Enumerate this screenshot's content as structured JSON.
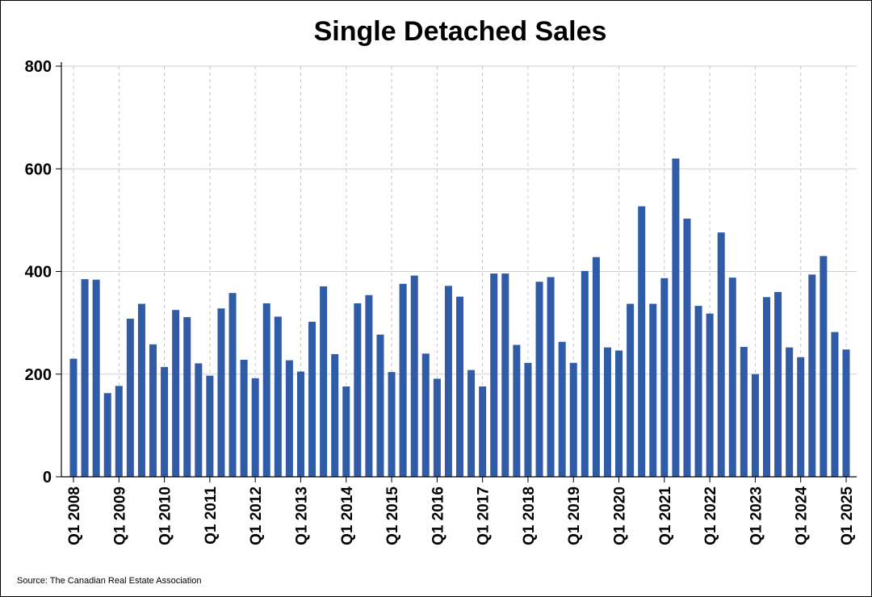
{
  "chart_data": {
    "type": "bar",
    "title": "Single Detached Sales",
    "source": "Source: The Canadian Real Estate Association",
    "ylim": [
      0,
      800
    ],
    "yticks": [
      0,
      200,
      400,
      600,
      800
    ],
    "xtick_labels": [
      "Q1 2008",
      "Q1 2009",
      "Q1 2010",
      "Q1 2011",
      "Q1 2012",
      "Q1 2013",
      "Q1 2014",
      "Q1 2015",
      "Q1 2016",
      "Q1 2017",
      "Q1 2018",
      "Q1 2019",
      "Q1 2020",
      "Q1 2021",
      "Q1 2022",
      "Q1 2023",
      "Q1 2024",
      "Q1 2025"
    ],
    "categories": [
      "Q1 2008",
      "Q2 2008",
      "Q3 2008",
      "Q4 2008",
      "Q1 2009",
      "Q2 2009",
      "Q3 2009",
      "Q4 2009",
      "Q1 2010",
      "Q2 2010",
      "Q3 2010",
      "Q4 2010",
      "Q1 2011",
      "Q2 2011",
      "Q3 2011",
      "Q4 2011",
      "Q1 2012",
      "Q2 2012",
      "Q3 2012",
      "Q4 2012",
      "Q1 2013",
      "Q2 2013",
      "Q3 2013",
      "Q4 2013",
      "Q1 2014",
      "Q2 2014",
      "Q3 2014",
      "Q4 2014",
      "Q1 2015",
      "Q2 2015",
      "Q3 2015",
      "Q4 2015",
      "Q1 2016",
      "Q2 2016",
      "Q3 2016",
      "Q4 2016",
      "Q1 2017",
      "Q2 2017",
      "Q3 2017",
      "Q4 2017",
      "Q1 2018",
      "Q2 2018",
      "Q3 2018",
      "Q4 2018",
      "Q1 2019",
      "Q2 2019",
      "Q3 2019",
      "Q4 2019",
      "Q1 2020",
      "Q2 2020",
      "Q3 2020",
      "Q4 2020",
      "Q1 2021",
      "Q2 2021",
      "Q3 2021",
      "Q4 2021",
      "Q1 2022",
      "Q2 2022",
      "Q3 2022",
      "Q4 2022",
      "Q1 2023",
      "Q2 2023",
      "Q3 2023",
      "Q4 2023",
      "Q1 2024",
      "Q2 2024",
      "Q3 2024",
      "Q4 2024",
      "Q1 2025"
    ],
    "values": [
      230,
      385,
      384,
      163,
      177,
      308,
      337,
      258,
      214,
      325,
      311,
      221,
      197,
      328,
      358,
      228,
      192,
      338,
      312,
      227,
      205,
      302,
      371,
      239,
      176,
      338,
      354,
      277,
      204,
      376,
      392,
      240,
      191,
      372,
      351,
      208,
      176,
      396,
      396,
      257,
      222,
      380,
      389,
      263,
      222,
      401,
      428,
      252,
      246,
      337,
      527,
      337,
      387,
      620,
      503,
      333,
      318,
      476,
      388,
      253,
      200,
      350,
      360,
      252,
      233,
      394,
      430,
      282,
      248
    ],
    "bar_color": "#2f5ba7",
    "grid": true
  }
}
